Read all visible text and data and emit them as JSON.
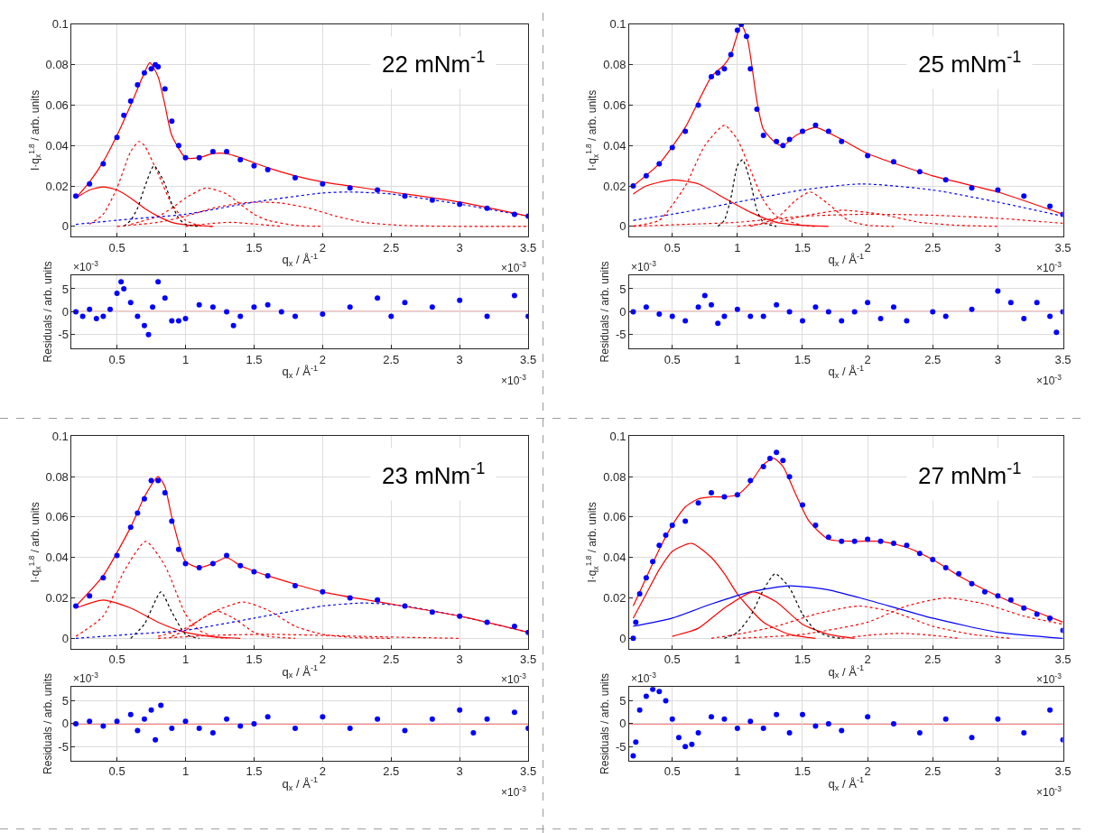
{
  "chart_data": [
    {
      "type": "line",
      "title": "22 mNm$^{-1}$",
      "xlabel": "q$_{x}$ / Å$^{-1}$",
      "ylabel": "I·q$_{x}$$^{1.8}$ / arb. units",
      "annotations": [
        "×10$^{-3}$"
      ],
      "xlim": [
        0.17,
        3.5
      ],
      "xticks": [
        0.5,
        1,
        1.5,
        2,
        2.5,
        3,
        3.5
      ],
      "ylim": [
        -0.005,
        0.1
      ],
      "yticks": [
        0,
        0.02,
        0.04,
        0.06,
        0.08,
        0.1
      ],
      "grid": true,
      "series": [
        {
          "type": "line",
          "line_style": "solid",
          "color": "#ff0000",
          "x": [
            0.2,
            0.3,
            0.4,
            0.5,
            0.6,
            0.7,
            0.8,
            0.9,
            1.0,
            1.2
          ],
          "values": [
            0.014,
            0.018,
            0.0195,
            0.018,
            0.014,
            0.009,
            0.005,
            0.002,
            0.0008,
            0
          ]
        },
        {
          "type": "line",
          "line_style": "dotted",
          "color": "#ff0000",
          "x": [
            0.3,
            0.4,
            0.5,
            0.6,
            0.66,
            0.7,
            0.8,
            0.9,
            1.0,
            1.1,
            1.2
          ],
          "values": [
            0.001,
            0.006,
            0.019,
            0.037,
            0.042,
            0.04,
            0.026,
            0.011,
            0.003,
            0.0005,
            0
          ]
        },
        {
          "type": "line",
          "line_style": "dotted",
          "color": "#000000",
          "x": [
            0.55,
            0.6,
            0.65,
            0.7,
            0.77,
            0.85,
            0.9,
            0.95,
            1.0,
            1.1
          ],
          "values": [
            0,
            0.003,
            0.009,
            0.019,
            0.03,
            0.021,
            0.011,
            0.004,
            0.001,
            0
          ]
        },
        {
          "type": "line",
          "line_style": "dotted",
          "color": "#ff0000",
          "x": [
            0.6,
            0.8,
            0.9,
            1.0,
            1.15,
            1.3,
            1.4,
            1.5,
            1.6,
            1.8,
            2.0
          ],
          "values": [
            0.001,
            0.005,
            0.009,
            0.014,
            0.019,
            0.016,
            0.011,
            0.006,
            0.003,
            0.0005,
            0
          ]
        },
        {
          "type": "line",
          "line_style": "dotted",
          "color": "#ff0000",
          "x": [
            1.0,
            1.2,
            1.33,
            1.5,
            1.7
          ],
          "values": [
            0,
            0.0015,
            0.002,
            0.0012,
            0
          ]
        },
        {
          "type": "line",
          "line_style": "dotted",
          "color": "#ff0000",
          "x": [
            0.5,
            0.8,
            1.0,
            1.2,
            1.4,
            1.55,
            1.7,
            1.9,
            2.1,
            2.3,
            2.6,
            3.0,
            3.5
          ],
          "values": [
            0,
            0.002,
            0.005,
            0.009,
            0.0115,
            0.012,
            0.0115,
            0.009,
            0.005,
            0.002,
            0.0004,
            0,
            0
          ]
        },
        {
          "type": "line",
          "line_style": "dotted",
          "color": "#0000ff",
          "x": [
            0.2,
            0.5,
            1.0,
            1.5,
            2.0,
            2.2,
            2.5,
            3.0,
            3.5
          ],
          "values": [
            0.001,
            0.003,
            0.006,
            0.012,
            0.0165,
            0.017,
            0.016,
            0.011,
            0.005
          ]
        },
        {
          "type": "scatter",
          "marker": "circle",
          "color": "#0000ff",
          "x": [
            0.2,
            0.3,
            0.4,
            0.5,
            0.55,
            0.6,
            0.65,
            0.7,
            0.75,
            0.78,
            0.8,
            0.85,
            0.9,
            0.95,
            1.0,
            1.1,
            1.2,
            1.3,
            1.4,
            1.5,
            1.6,
            1.8,
            2.0,
            2.2,
            2.4,
            2.6,
            2.8,
            3.0,
            3.2,
            3.4,
            3.5
          ],
          "values": [
            0.015,
            0.021,
            0.031,
            0.044,
            0.055,
            0.062,
            0.07,
            0.076,
            0.078,
            0.08,
            0.079,
            0.068,
            0.052,
            0.04,
            0.034,
            0.034,
            0.037,
            0.037,
            0.033,
            0.03,
            0.028,
            0.024,
            0.021,
            0.019,
            0.018,
            0.015,
            0.013,
            0.011,
            0.009,
            0.006,
            0.005
          ]
        },
        {
          "type": "line",
          "line_style": "solid",
          "color": "#ff0000",
          "x": [
            0.2,
            0.3,
            0.4,
            0.5,
            0.6,
            0.7,
            0.74,
            0.8,
            0.85,
            0.9,
            1.0,
            1.1,
            1.2,
            1.3,
            1.4,
            1.6,
            1.8,
            2.0,
            2.2,
            2.5,
            3.0,
            3.5
          ],
          "values": [
            0.014,
            0.022,
            0.032,
            0.045,
            0.06,
            0.076,
            0.081,
            0.074,
            0.06,
            0.045,
            0.034,
            0.034,
            0.036,
            0.036,
            0.034,
            0.029,
            0.025,
            0.022,
            0.02,
            0.017,
            0.012,
            0.005
          ]
        }
      ]
    },
    {
      "type": "line",
      "title": "25 mNm$^{-1}$",
      "xlabel": "q$_{x}$ / Å$^{-1}$",
      "ylabel": "I·q$_{x}$$^{1.8}$ / arb. units",
      "annotations": [
        "×10$^{-3}$"
      ],
      "xlim": [
        0.17,
        3.5
      ],
      "xticks": [
        0.5,
        1,
        1.5,
        2,
        2.5,
        3,
        3.5
      ],
      "ylim": [
        -0.005,
        0.1
      ],
      "yticks": [
        0,
        0.02,
        0.04,
        0.06,
        0.08,
        0.1
      ],
      "grid": true,
      "series": [
        {
          "type": "line",
          "line_style": "solid",
          "color": "#ff0000",
          "x": [
            0.2,
            0.3,
            0.5,
            0.7,
            0.9,
            1.1,
            1.3,
            1.5,
            1.7
          ],
          "values": [
            0.016,
            0.02,
            0.023,
            0.021,
            0.014,
            0.007,
            0.002,
            0.0005,
            0
          ]
        },
        {
          "type": "line",
          "line_style": "dotted",
          "color": "#ff0000",
          "x": [
            0.2,
            0.4,
            0.6,
            0.75,
            0.9,
            1.0,
            1.1,
            1.2,
            1.3,
            1.5,
            1.6
          ],
          "values": [
            0.0002,
            0.003,
            0.02,
            0.04,
            0.05,
            0.043,
            0.028,
            0.013,
            0.005,
            0.0005,
            0
          ]
        },
        {
          "type": "line",
          "line_style": "dotted",
          "color": "#000000",
          "x": [
            0.85,
            0.9,
            0.95,
            1.0,
            1.04,
            1.1,
            1.15,
            1.2,
            1.3
          ],
          "values": [
            0,
            0.003,
            0.014,
            0.03,
            0.033,
            0.022,
            0.008,
            0.002,
            0
          ]
        },
        {
          "type": "line",
          "line_style": "dotted",
          "color": "#ff0000",
          "x": [
            1.1,
            1.3,
            1.45,
            1.56,
            1.7,
            1.85,
            2.0,
            2.2
          ],
          "values": [
            0,
            0.004,
            0.013,
            0.017,
            0.011,
            0.003,
            0.0005,
            0
          ]
        },
        {
          "type": "line",
          "line_style": "dotted",
          "color": "#ff0000",
          "x": [
            1.0,
            1.3,
            1.5,
            1.8,
            2.1,
            2.4,
            2.7,
            3.0
          ],
          "values": [
            0,
            0.002,
            0.005,
            0.008,
            0.006,
            0.002,
            0.0005,
            0
          ]
        },
        {
          "type": "line",
          "line_style": "dotted",
          "color": "#ff0000",
          "x": [
            0.2,
            0.6,
            1.0,
            1.5,
            2.0,
            2.5,
            3.0,
            3.5
          ],
          "values": [
            0,
            0.001,
            0.002,
            0.005,
            0.006,
            0.0055,
            0.004,
            0.0015
          ]
        },
        {
          "type": "line",
          "line_style": "dotted",
          "color": "#0000ff",
          "x": [
            0.2,
            0.5,
            1.0,
            1.5,
            1.95,
            2.5,
            3.0,
            3.5
          ],
          "values": [
            0.003,
            0.006,
            0.012,
            0.018,
            0.021,
            0.018,
            0.012,
            0.005
          ]
        },
        {
          "type": "scatter",
          "marker": "circle",
          "color": "#0000ff",
          "x": [
            0.2,
            0.3,
            0.4,
            0.5,
            0.6,
            0.7,
            0.8,
            0.85,
            0.9,
            0.95,
            1.0,
            1.03,
            1.07,
            1.1,
            1.15,
            1.2,
            1.3,
            1.35,
            1.4,
            1.5,
            1.6,
            1.7,
            1.8,
            2.0,
            2.2,
            2.4,
            2.6,
            2.8,
            3.0,
            3.2,
            3.4,
            3.5
          ],
          "values": [
            0.02,
            0.025,
            0.031,
            0.039,
            0.047,
            0.06,
            0.074,
            0.076,
            0.078,
            0.085,
            0.097,
            0.1,
            0.094,
            0.078,
            0.058,
            0.045,
            0.042,
            0.04,
            0.043,
            0.047,
            0.05,
            0.047,
            0.042,
            0.035,
            0.032,
            0.027,
            0.023,
            0.019,
            0.018,
            0.015,
            0.01,
            0.006
          ]
        },
        {
          "type": "line",
          "line_style": "solid",
          "color": "#ff0000",
          "x": [
            0.2,
            0.4,
            0.6,
            0.8,
            0.9,
            0.95,
            1.0,
            1.03,
            1.08,
            1.15,
            1.2,
            1.3,
            1.35,
            1.45,
            1.6,
            1.8,
            2.0,
            2.5,
            3.0,
            3.5
          ],
          "values": [
            0.02,
            0.031,
            0.049,
            0.074,
            0.08,
            0.085,
            0.095,
            0.1,
            0.092,
            0.062,
            0.048,
            0.041,
            0.04,
            0.045,
            0.049,
            0.043,
            0.036,
            0.025,
            0.017,
            0.006
          ]
        }
      ]
    },
    {
      "type": "scatter",
      "xlabel": "q$_{x}$ / Å$^{-1}$",
      "ylabel": "Residuals / arb. units",
      "annotations": [
        "×10$^{-3}$",
        "×10$^{-3}$"
      ],
      "xlim": [
        0.17,
        3.5
      ],
      "xticks": [
        0.5,
        1,
        1.5,
        2,
        2.5,
        3,
        3.5
      ],
      "ylim": [
        -8,
        8
      ],
      "yticks": [
        -5,
        0,
        5
      ],
      "grid": true,
      "marker": "circle",
      "ref_lines": [
        {
          "axis": "y",
          "value": 0,
          "color": "#ff0000"
        }
      ],
      "color": "#0000ff",
      "x": [
        0.2,
        0.25,
        0.3,
        0.35,
        0.4,
        0.45,
        0.5,
        0.53,
        0.55,
        0.6,
        0.65,
        0.7,
        0.73,
        0.76,
        0.8,
        0.85,
        0.9,
        0.95,
        1.0,
        1.1,
        1.2,
        1.3,
        1.35,
        1.4,
        1.5,
        1.6,
        1.7,
        1.8,
        2.0,
        2.2,
        2.4,
        2.5,
        2.6,
        2.8,
        3.0,
        3.2,
        3.4,
        3.5
      ],
      "values": [
        0,
        -1,
        0.5,
        -1.5,
        -1,
        0.5,
        4,
        6.5,
        5,
        2,
        -1,
        -3,
        -5,
        1,
        6.5,
        3,
        -2,
        -2,
        -1.5,
        1.5,
        1,
        0,
        -3,
        -1,
        1,
        1.5,
        0,
        -1,
        -0.5,
        1,
        3,
        -1,
        2,
        1,
        2.5,
        -1,
        3.5,
        -1
      ]
    },
    {
      "type": "scatter",
      "xlabel": "q$_{x}$ / Å$^{-1}$",
      "ylabel": "Residuals / arb. units",
      "annotations": [
        "×10$^{-3}$",
        "×10$^{-3}$"
      ],
      "xlim": [
        0.17,
        3.5
      ],
      "xticks": [
        0.5,
        1,
        1.5,
        2,
        2.5,
        3,
        3.5
      ],
      "ylim": [
        -8,
        8
      ],
      "yticks": [
        -5,
        0,
        5
      ],
      "grid": true,
      "marker": "circle",
      "ref_lines": [
        {
          "axis": "y",
          "value": 0,
          "color": "#ff0000"
        }
      ],
      "color": "#0000ff",
      "x": [
        0.2,
        0.3,
        0.4,
        0.5,
        0.6,
        0.7,
        0.75,
        0.8,
        0.85,
        0.9,
        1.0,
        1.1,
        1.2,
        1.3,
        1.4,
        1.5,
        1.6,
        1.7,
        1.8,
        1.9,
        2.0,
        2.1,
        2.2,
        2.3,
        2.5,
        2.6,
        2.8,
        3.0,
        3.1,
        3.2,
        3.3,
        3.4,
        3.45,
        3.5
      ],
      "values": [
        0,
        1,
        -0.5,
        -1,
        -2,
        1,
        3.5,
        1.5,
        -2.5,
        -1,
        0.5,
        -1,
        -1,
        1.5,
        0,
        -2,
        1,
        0,
        -2,
        0,
        2,
        -1.5,
        1,
        -2,
        0,
        -1,
        0.5,
        4.5,
        2,
        -1.5,
        2,
        -1,
        -4.5,
        0
      ]
    },
    {
      "type": "line",
      "title": "23 mNm$^{-1}$",
      "xlabel": "q$_{x}$ / Å$^{-1}$",
      "ylabel": "I·q$_{x}$$^{1.8}$ / arb. units",
      "annotations": [
        "×10$^{-3}$"
      ],
      "xlim": [
        0.17,
        3.5
      ],
      "xticks": [
        0.5,
        1,
        1.5,
        2,
        2.5,
        3,
        3.5
      ],
      "ylim": [
        -0.005,
        0.1
      ],
      "yticks": [
        0,
        0.02,
        0.04,
        0.06,
        0.08,
        0.1
      ],
      "grid": true,
      "series": [
        {
          "type": "line",
          "line_style": "solid",
          "color": "#ff0000",
          "x": [
            0.2,
            0.4,
            0.6,
            0.8,
            1.0,
            1.2,
            1.4
          ],
          "values": [
            0.015,
            0.019,
            0.015,
            0.008,
            0.003,
            0.0008,
            0
          ]
        },
        {
          "type": "line",
          "line_style": "dotted",
          "color": "#ff0000",
          "x": [
            0.2,
            0.4,
            0.55,
            0.71,
            0.85,
            1.0,
            1.1,
            1.2,
            1.3
          ],
          "values": [
            0.001,
            0.011,
            0.033,
            0.048,
            0.036,
            0.012,
            0.004,
            0.001,
            0
          ]
        },
        {
          "type": "line",
          "line_style": "dotted",
          "color": "#000000",
          "x": [
            0.6,
            0.7,
            0.82,
            0.9,
            1.0,
            1.1
          ],
          "values": [
            0,
            0.007,
            0.023,
            0.013,
            0.002,
            0
          ]
        },
        {
          "type": "line",
          "line_style": "dotted",
          "color": "#ff0000",
          "x": [
            0.9,
            1.0,
            1.1,
            1.23,
            1.35,
            1.5,
            1.6,
            1.8
          ],
          "values": [
            0.001,
            0.004,
            0.009,
            0.0135,
            0.01,
            0.003,
            0.001,
            0
          ]
        },
        {
          "type": "line",
          "line_style": "dotted",
          "color": "#ff0000",
          "x": [
            0.8,
            1.0,
            1.2,
            1.42,
            1.6,
            1.8,
            2.0,
            2.2,
            2.5
          ],
          "values": [
            0.001,
            0.005,
            0.013,
            0.018,
            0.014,
            0.006,
            0.002,
            0.0005,
            0
          ]
        },
        {
          "type": "line",
          "line_style": "dotted",
          "color": "#ff0000",
          "x": [
            0.8,
            1.2,
            1.6,
            2.0,
            2.4,
            3.0
          ],
          "values": [
            0,
            0.0015,
            0.002,
            0.0015,
            0.0008,
            0
          ]
        },
        {
          "type": "line",
          "line_style": "dotted",
          "color": "#0000ff",
          "x": [
            0.2,
            0.6,
            1.0,
            1.5,
            2.0,
            2.3,
            2.6,
            3.0,
            3.5
          ],
          "values": [
            0,
            0.002,
            0.004,
            0.01,
            0.016,
            0.0175,
            0.016,
            0.011,
            0.003
          ]
        },
        {
          "type": "scatter",
          "marker": "circle",
          "color": "#0000ff",
          "x": [
            0.2,
            0.3,
            0.4,
            0.5,
            0.6,
            0.65,
            0.7,
            0.75,
            0.8,
            0.85,
            0.9,
            0.95,
            1.0,
            1.1,
            1.2,
            1.3,
            1.4,
            1.5,
            1.6,
            1.8,
            2.0,
            2.2,
            2.4,
            2.6,
            2.8,
            3.0,
            3.2,
            3.4,
            3.5
          ],
          "values": [
            0.016,
            0.021,
            0.03,
            0.041,
            0.055,
            0.062,
            0.069,
            0.078,
            0.078,
            0.072,
            0.058,
            0.044,
            0.037,
            0.035,
            0.037,
            0.041,
            0.036,
            0.033,
            0.031,
            0.026,
            0.023,
            0.02,
            0.019,
            0.016,
            0.013,
            0.011,
            0.008,
            0.006,
            0.003
          ]
        },
        {
          "type": "line",
          "line_style": "solid",
          "color": "#ff0000",
          "x": [
            0.2,
            0.4,
            0.6,
            0.7,
            0.8,
            0.85,
            0.9,
            1.0,
            1.1,
            1.2,
            1.3,
            1.4,
            1.6,
            2.0,
            2.5,
            3.0,
            3.5
          ],
          "values": [
            0.016,
            0.031,
            0.055,
            0.07,
            0.08,
            0.075,
            0.06,
            0.038,
            0.035,
            0.037,
            0.04,
            0.036,
            0.031,
            0.023,
            0.017,
            0.011,
            0.003
          ]
        }
      ]
    },
    {
      "type": "line",
      "title": "27 mNm$^{-1}$",
      "xlabel": "q$_{x}$ / Å$^{-1}$",
      "ylabel": "I·q$_{x}$$^{1.8}$ / arb. units",
      "annotations": [
        "×10$^{-3}$"
      ],
      "xlim": [
        0.17,
        3.5
      ],
      "xticks": [
        0.5,
        1,
        1.5,
        2,
        2.5,
        3,
        3.5
      ],
      "ylim": [
        -0.005,
        0.1
      ],
      "yticks": [
        0,
        0.02,
        0.04,
        0.06,
        0.08,
        0.1
      ],
      "grid": true,
      "series": [
        {
          "type": "line",
          "line_style": "solid",
          "color": "#ff0000",
          "x": [
            0.2,
            0.3,
            0.4,
            0.5,
            0.65,
            0.8,
            0.9,
            1.0,
            1.2,
            1.4,
            1.6
          ],
          "values": [
            0.01,
            0.022,
            0.034,
            0.043,
            0.047,
            0.04,
            0.032,
            0.022,
            0.008,
            0.002,
            0
          ]
        },
        {
          "type": "line",
          "line_style": "solid",
          "color": "#0000ff",
          "x": [
            0.2,
            0.5,
            0.8,
            1.1,
            1.4,
            1.7,
            2.0,
            2.5,
            3.0,
            3.5
          ],
          "values": [
            0.006,
            0.01,
            0.017,
            0.023,
            0.026,
            0.024,
            0.019,
            0.01,
            0.003,
            0
          ]
        },
        {
          "type": "line",
          "line_style": "solid",
          "color": "#ff0000",
          "x": [
            0.5,
            0.7,
            0.9,
            1.12,
            1.3,
            1.5,
            1.7,
            1.9
          ],
          "values": [
            0.001,
            0.005,
            0.015,
            0.023,
            0.018,
            0.007,
            0.002,
            0
          ]
        },
        {
          "type": "line",
          "line_style": "dotted",
          "color": "#000000",
          "x": [
            0.9,
            1.0,
            1.1,
            1.2,
            1.29,
            1.4,
            1.5,
            1.6,
            1.7,
            1.8
          ],
          "values": [
            0,
            0.003,
            0.011,
            0.024,
            0.032,
            0.025,
            0.012,
            0.004,
            0.001,
            0
          ]
        },
        {
          "type": "line",
          "line_style": "dotted",
          "color": "#ff0000",
          "x": [
            0.8,
            1.0,
            1.3,
            1.6,
            1.93,
            2.2,
            2.5,
            2.8,
            3.1
          ],
          "values": [
            0,
            0.002,
            0.006,
            0.012,
            0.016,
            0.013,
            0.006,
            0.002,
            0
          ]
        },
        {
          "type": "line",
          "line_style": "dotted",
          "color": "#ff0000",
          "x": [
            1.0,
            1.5,
            2.0,
            2.3,
            2.6,
            2.9,
            3.2,
            3.5
          ],
          "values": [
            0,
            0.002,
            0.008,
            0.016,
            0.02,
            0.017,
            0.011,
            0.007
          ]
        },
        {
          "type": "line",
          "line_style": "dotted",
          "color": "#ff0000",
          "x": [
            1.8,
            2.0,
            2.25,
            2.5,
            2.7
          ],
          "values": [
            0,
            0.0015,
            0.0025,
            0.0015,
            0
          ]
        },
        {
          "type": "scatter",
          "marker": "circle",
          "color": "#0000ff",
          "x": [
            0.2,
            0.22,
            0.25,
            0.3,
            0.35,
            0.4,
            0.45,
            0.5,
            0.6,
            0.7,
            0.8,
            0.9,
            1.0,
            1.1,
            1.2,
            1.25,
            1.3,
            1.35,
            1.4,
            1.5,
            1.6,
            1.7,
            1.8,
            1.9,
            2.0,
            2.1,
            2.2,
            2.3,
            2.4,
            2.5,
            2.6,
            2.7,
            2.8,
            2.9,
            3.0,
            3.1,
            3.2,
            3.3,
            3.4,
            3.5
          ],
          "values": [
            0,
            0.008,
            0.022,
            0.03,
            0.038,
            0.046,
            0.051,
            0.056,
            0.058,
            0.067,
            0.072,
            0.07,
            0.071,
            0.078,
            0.085,
            0.089,
            0.092,
            0.088,
            0.08,
            0.066,
            0.056,
            0.05,
            0.048,
            0.048,
            0.049,
            0.048,
            0.047,
            0.046,
            0.042,
            0.039,
            0.035,
            0.032,
            0.027,
            0.023,
            0.021,
            0.019,
            0.015,
            0.012,
            0.01,
            0.004
          ]
        },
        {
          "type": "line",
          "line_style": "solid",
          "color": "#ff0000",
          "x": [
            0.2,
            0.3,
            0.4,
            0.5,
            0.6,
            0.7,
            0.8,
            0.9,
            1.0,
            1.1,
            1.2,
            1.28,
            1.35,
            1.45,
            1.55,
            1.7,
            1.9,
            2.1,
            2.3,
            2.5,
            2.7,
            2.9,
            3.1,
            3.3,
            3.5
          ],
          "values": [
            0.016,
            0.03,
            0.044,
            0.056,
            0.065,
            0.069,
            0.07,
            0.07,
            0.071,
            0.077,
            0.086,
            0.089,
            0.085,
            0.071,
            0.058,
            0.049,
            0.048,
            0.048,
            0.045,
            0.039,
            0.031,
            0.024,
            0.018,
            0.013,
            0.008
          ]
        }
      ]
    },
    {
      "type": "scatter",
      "xlabel": "q$_{x}$ / Å$^{-1}$",
      "ylabel": "Residuals / arb. units",
      "annotations": [
        "×10$^{-3}$",
        "×10$^{-3}$"
      ],
      "xlim": [
        0.17,
        3.5
      ],
      "xticks": [
        0.5,
        1,
        1.5,
        2,
        2.5,
        3,
        3.5
      ],
      "ylim": [
        -8,
        8
      ],
      "yticks": [
        -5,
        0,
        5
      ],
      "grid": true,
      "marker": "circle",
      "ref_lines": [
        {
          "axis": "y",
          "value": 0,
          "color": "#ff0000"
        }
      ],
      "color": "#0000ff",
      "x": [
        0.2,
        0.3,
        0.4,
        0.5,
        0.6,
        0.65,
        0.7,
        0.75,
        0.78,
        0.82,
        0.9,
        1.0,
        1.1,
        1.2,
        1.3,
        1.4,
        1.5,
        1.6,
        1.8,
        2.0,
        2.2,
        2.4,
        2.6,
        2.8,
        3.0,
        3.1,
        3.2,
        3.4,
        3.5
      ],
      "values": [
        0,
        0.5,
        -0.5,
        0.5,
        2,
        -1.5,
        1,
        3,
        -3.5,
        4,
        -1,
        0.5,
        -1,
        -2,
        1,
        -0.5,
        0,
        1.5,
        -1,
        1.5,
        -1,
        1,
        -1.5,
        1,
        3,
        -2,
        1,
        2.5,
        -1
      ]
    },
    {
      "type": "scatter",
      "xlabel": "q$_{x}$ / Å$^{-1}$",
      "ylabel": "Residuals / arb. units",
      "annotations": [
        "×10$^{-3}$",
        "×10$^{-3}$"
      ],
      "xlim": [
        0.17,
        3.5
      ],
      "xticks": [
        0.5,
        1,
        1.5,
        2,
        2.5,
        3,
        3.5
      ],
      "ylim": [
        -8,
        8
      ],
      "yticks": [
        -5,
        0,
        5
      ],
      "grid": true,
      "marker": "circle",
      "ref_lines": [
        {
          "axis": "y",
          "value": 0,
          "color": "#ff0000"
        }
      ],
      "color": "#0000ff",
      "x": [
        0.2,
        0.22,
        0.25,
        0.3,
        0.35,
        0.4,
        0.45,
        0.5,
        0.55,
        0.6,
        0.65,
        0.7,
        0.8,
        0.9,
        1.0,
        1.1,
        1.2,
        1.3,
        1.4,
        1.5,
        1.6,
        1.7,
        1.8,
        2.0,
        2.2,
        2.4,
        2.6,
        2.8,
        3.0,
        3.2,
        3.4,
        3.5
      ],
      "values": [
        -7,
        -4,
        3,
        6,
        7.5,
        7,
        5,
        1,
        -3,
        -5,
        -4.5,
        -2,
        1.5,
        1,
        -1,
        0.5,
        -1,
        2,
        -2,
        2,
        -0.5,
        0,
        -1.5,
        1.5,
        0,
        -2,
        1,
        -3,
        1,
        -2,
        3,
        -3.5
      ]
    }
  ]
}
